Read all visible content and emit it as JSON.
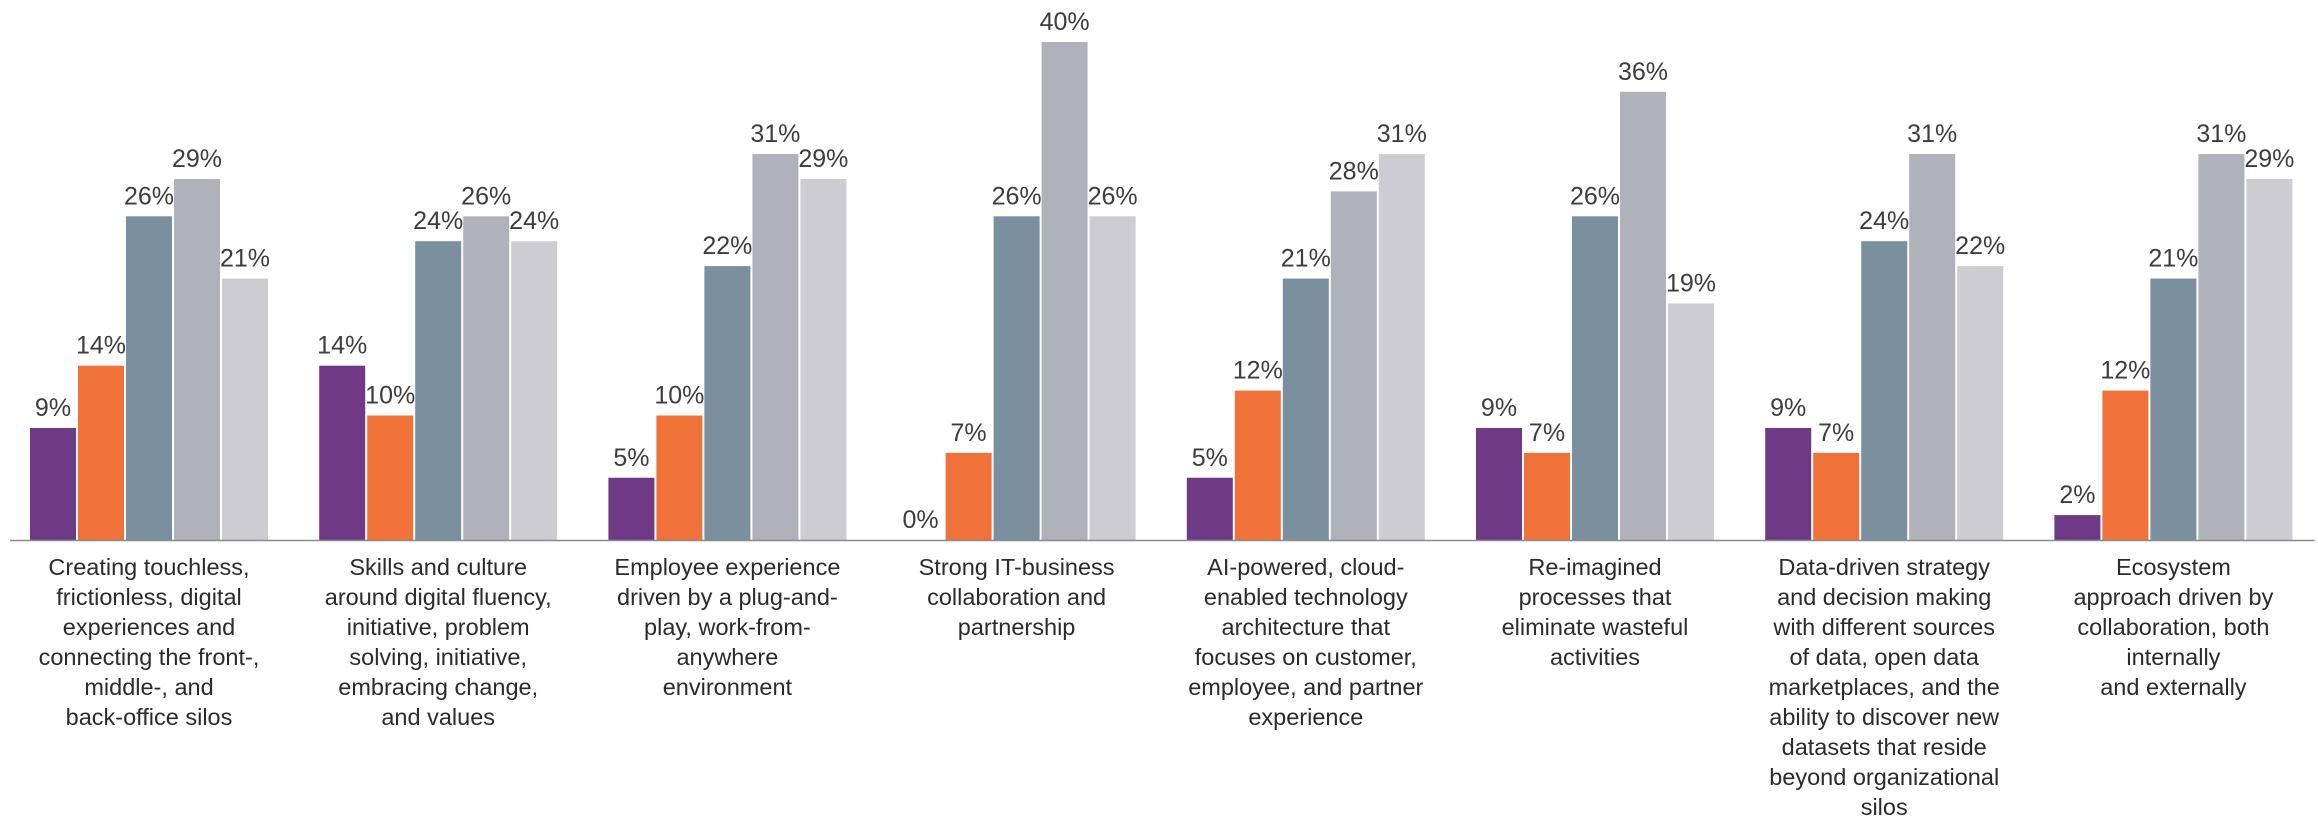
{
  "chart_data": {
    "type": "bar",
    "title": "",
    "xlabel": "",
    "ylabel": "",
    "ylim": [
      0,
      40
    ],
    "grid": false,
    "legend": "none",
    "value_suffix": "%",
    "categories": [
      [
        "Creating touchless,",
        "frictionless, digital",
        "experiences and",
        "connecting the front-,",
        "middle-, and",
        "back-office silos"
      ],
      [
        "Skills and culture",
        "around digital fluency,",
        "initiative, problem",
        "solving, initiative,",
        "embracing change,",
        "and values"
      ],
      [
        "Employee experience",
        "driven by a plug-and-",
        "play, work-from-",
        "anywhere",
        "environment"
      ],
      [
        "Strong IT-business",
        "collaboration and",
        "partnership"
      ],
      [
        "AI-powered, cloud-",
        "enabled technology",
        "architecture that",
        "focuses on customer,",
        "employee, and partner",
        "experience"
      ],
      [
        "Re-imagined",
        "processes that",
        "eliminate wasteful",
        "activities"
      ],
      [
        "Data-driven strategy",
        "and decision making",
        "with different sources",
        "of data, open data",
        "marketplaces, and the",
        "ability to discover new",
        "datasets that reside",
        "beyond organizational",
        "silos"
      ],
      [
        "Ecosystem",
        "approach driven by",
        "collaboration, both",
        "internally",
        "and externally"
      ]
    ],
    "series": [
      {
        "color": "#6f3a85",
        "values": [
          9,
          14,
          5,
          0,
          5,
          9,
          9,
          2
        ]
      },
      {
        "color": "#f07238",
        "values": [
          14,
          10,
          10,
          7,
          12,
          7,
          7,
          12
        ]
      },
      {
        "color": "#7a909f",
        "values": [
          26,
          24,
          22,
          26,
          21,
          26,
          24,
          21
        ]
      },
      {
        "color": "#b0b2bb",
        "values": [
          29,
          26,
          31,
          40,
          28,
          36,
          31,
          31
        ]
      },
      {
        "color": "#cdccd2",
        "values": [
          21,
          24,
          29,
          26,
          31,
          19,
          22,
          29
        ]
      }
    ]
  }
}
